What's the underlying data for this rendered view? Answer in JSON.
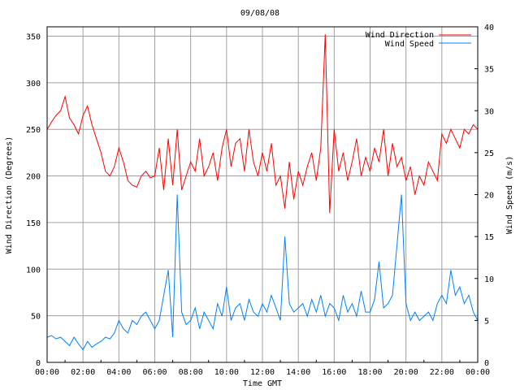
{
  "chart_data": {
    "type": "line",
    "title": "09/08/08",
    "xlabel": "Time GMT",
    "ylabel": "Wind Direction (Degrees)",
    "y2label": "Wind Speed (m/s)",
    "xlim_hours": [
      0,
      24
    ],
    "ylim": [
      0,
      360
    ],
    "y2lim": [
      0,
      40
    ],
    "grid": true,
    "legend_position": "top-right",
    "x_ticks": [
      "00:00",
      "02:00",
      "04:00",
      "06:00",
      "08:00",
      "10:00",
      "12:00",
      "14:00",
      "16:00",
      "18:00",
      "20:00",
      "22:00",
      "00:00"
    ],
    "y_ticks": [
      0,
      50,
      100,
      150,
      200,
      250,
      300,
      350
    ],
    "y2_ticks": [
      0,
      5,
      10,
      15,
      20,
      25,
      30,
      35,
      40
    ],
    "series": [
      {
        "name": "Wind Direction",
        "axis": "left",
        "color": "#ff0000",
        "values": [
          250,
          258,
          265,
          270,
          285,
          262,
          255,
          245,
          265,
          275,
          255,
          240,
          225,
          205,
          200,
          210,
          230,
          215,
          195,
          190,
          188,
          200,
          205,
          198,
          200,
          230,
          185,
          240,
          190,
          250,
          185,
          200,
          215,
          205,
          240,
          200,
          210,
          225,
          195,
          230,
          250,
          210,
          235,
          240,
          205,
          250,
          215,
          200,
          225,
          205,
          235,
          190,
          200,
          165,
          215,
          175,
          205,
          190,
          210,
          225,
          195,
          230,
          352,
          160,
          250,
          205,
          225,
          195,
          215,
          240,
          200,
          220,
          205,
          230,
          215,
          250,
          200,
          235,
          210,
          220,
          195,
          210,
          180,
          200,
          190,
          215,
          205,
          195,
          245,
          235,
          250,
          240,
          230,
          250,
          245,
          255,
          250
        ]
      },
      {
        "name": "Wind Speed",
        "axis": "right",
        "color": "#0080ff",
        "values": [
          3,
          3.2,
          2.8,
          3,
          2.5,
          2,
          3,
          2.2,
          1.5,
          2.5,
          1.8,
          2.2,
          2.5,
          3,
          2.8,
          3.5,
          5,
          4,
          3.5,
          5,
          4.5,
          5.5,
          6,
          5,
          4,
          5,
          8,
          11,
          3,
          20,
          6,
          4.5,
          5,
          6.5,
          4,
          6,
          5,
          4,
          7,
          5.5,
          9,
          5,
          6.5,
          7,
          5,
          7.5,
          6,
          5.5,
          7,
          6,
          8,
          6.5,
          5,
          15,
          7,
          6,
          6.5,
          7,
          5.5,
          7.5,
          6,
          8,
          5.5,
          7,
          6.5,
          5,
          8,
          6,
          7,
          5.5,
          8.5,
          6,
          6,
          7.5,
          12,
          6.5,
          7,
          8,
          14,
          20,
          7,
          5,
          6,
          5,
          5.5,
          6,
          5,
          7,
          8,
          7,
          11,
          8,
          9,
          7,
          8,
          6,
          5
        ]
      }
    ]
  }
}
